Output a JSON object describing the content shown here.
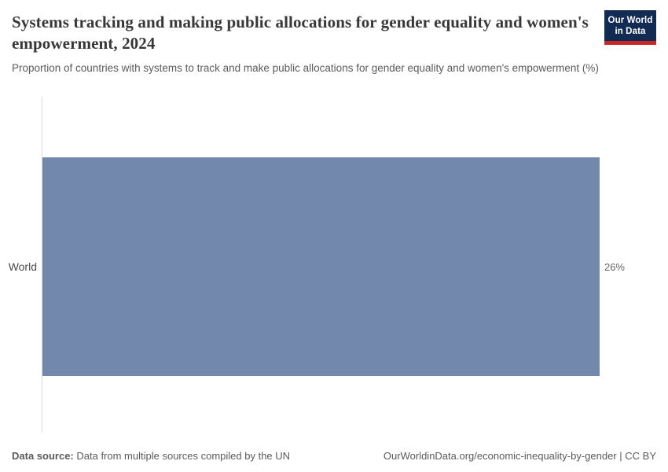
{
  "header": {
    "title": "Systems tracking and making public allocations for gender equality and women's empowerment, 2024",
    "subtitle": "Proportion of countries with systems to track and make public allocations for gender equality and women's empowerment (%)",
    "logo": {
      "line1": "Our World",
      "line2": "in Data",
      "background_color": "#122b52",
      "accent_color": "#cb2626"
    }
  },
  "chart_data": {
    "type": "bar",
    "orientation": "horizontal",
    "title": "Systems tracking and making public allocations for gender equality and women's empowerment, 2024",
    "subtitle": "Proportion of countries with systems to track and make public allocations for gender equality and women's empowerment (%)",
    "categories": [
      "World"
    ],
    "values": [
      26
    ],
    "value_labels": [
      "26%"
    ],
    "unit": "%",
    "xlim": [
      0,
      26
    ],
    "xlabel": "",
    "ylabel": "",
    "grid": false,
    "legend": false,
    "bar_color": "#7288ad",
    "axis_line_color": "#dcdcdc"
  },
  "footer": {
    "datasource_label": "Data source:",
    "datasource_value": "Data from multiple sources compiled by the UN",
    "link": "OurWorldinData.org/economic-inequality-by-gender | CC BY"
  }
}
